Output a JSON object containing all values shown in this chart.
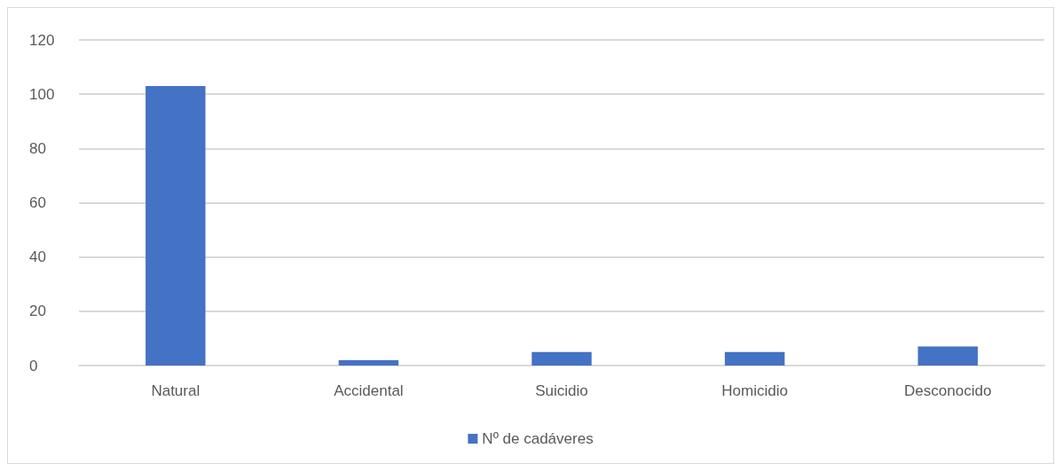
{
  "chart_data": {
    "type": "bar",
    "categories": [
      "Natural",
      "Accidental",
      "Suicidio",
      "Homicidio",
      "Desconocido"
    ],
    "series": [
      {
        "name": "Nº de cadáveres",
        "color": "#4472c4",
        "values": [
          103,
          2,
          5,
          5,
          7
        ]
      }
    ],
    "ylim": [
      0,
      120
    ],
    "yticks": [
      0,
      20,
      40,
      60,
      80,
      100,
      120
    ],
    "grid": "y",
    "legend": "bottom"
  }
}
